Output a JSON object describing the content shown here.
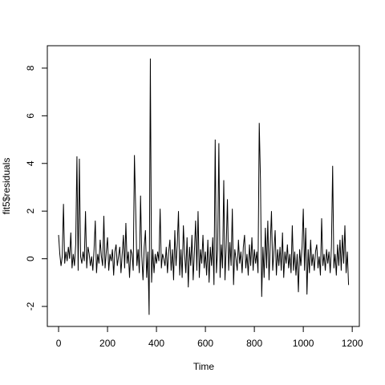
{
  "chart_data": {
    "type": "line",
    "xlabel": "Time",
    "ylabel": "fit5$residuals",
    "color": "#000000",
    "xlim": [
      -46,
      1229
    ],
    "ylim": [
      -2.84,
      8.94
    ],
    "xticks": [
      0,
      200,
      400,
      600,
      800,
      1000,
      1200
    ],
    "yticks": [
      -2,
      0,
      2,
      4,
      6,
      8
    ],
    "x": [
      0,
      5,
      10,
      15,
      20,
      25,
      30,
      35,
      40,
      45,
      50,
      55,
      60,
      65,
      70,
      75,
      80,
      85,
      90,
      95,
      100,
      105,
      110,
      115,
      120,
      125,
      130,
      135,
      140,
      145,
      150,
      155,
      160,
      165,
      170,
      175,
      180,
      185,
      190,
      195,
      200,
      205,
      210,
      215,
      220,
      225,
      230,
      235,
      240,
      245,
      250,
      255,
      260,
      265,
      270,
      275,
      280,
      285,
      290,
      295,
      300,
      305,
      310,
      315,
      320,
      325,
      330,
      335,
      340,
      345,
      350,
      355,
      360,
      365,
      370,
      375,
      380,
      385,
      390,
      395,
      400,
      405,
      410,
      415,
      420,
      425,
      430,
      435,
      440,
      445,
      450,
      455,
      460,
      465,
      470,
      475,
      480,
      485,
      490,
      495,
      500,
      505,
      510,
      515,
      520,
      525,
      530,
      535,
      540,
      545,
      550,
      555,
      560,
      565,
      570,
      575,
      580,
      585,
      590,
      595,
      600,
      605,
      610,
      615,
      620,
      625,
      630,
      635,
      640,
      645,
      650,
      655,
      660,
      665,
      670,
      675,
      680,
      685,
      690,
      695,
      700,
      705,
      710,
      715,
      720,
      725,
      730,
      735,
      740,
      745,
      750,
      755,
      760,
      765,
      770,
      775,
      780,
      785,
      790,
      795,
      800,
      805,
      810,
      815,
      820,
      825,
      830,
      835,
      840,
      845,
      850,
      855,
      860,
      865,
      870,
      875,
      880,
      885,
      890,
      895,
      900,
      905,
      910,
      915,
      920,
      925,
      930,
      935,
      940,
      945,
      950,
      955,
      960,
      965,
      970,
      975,
      980,
      985,
      990,
      995,
      1000,
      1005,
      1010,
      1015,
      1020,
      1025,
      1030,
      1035,
      1040,
      1045,
      1050,
      1055,
      1060,
      1065,
      1070,
      1075,
      1080,
      1085,
      1090,
      1095,
      1100,
      1105,
      1110,
      1115,
      1120,
      1125,
      1130,
      1135,
      1140,
      1145,
      1150,
      1155,
      1160,
      1165,
      1170,
      1175,
      1180,
      1185
    ],
    "values": [
      1.0,
      0.2,
      -0.3,
      0.1,
      2.3,
      -0.2,
      0.3,
      -0.1,
      0.5,
      0.0,
      1.1,
      -0.4,
      0.2,
      -0.3,
      0.6,
      4.3,
      -0.5,
      4.2,
      0.1,
      -0.2,
      0.3,
      -0.1,
      2.0,
      -0.4,
      0.5,
      0.2,
      -0.3,
      0.1,
      -0.5,
      0.4,
      1.6,
      -0.6,
      0.2,
      -0.2,
      0.8,
      0.1,
      -0.3,
      1.8,
      -0.4,
      0.3,
      0.9,
      -0.5,
      0.2,
      -0.1,
      0.4,
      -0.7,
      0.3,
      0.6,
      -0.3,
      0.1,
      0.5,
      -0.6,
      0.2,
      1.0,
      -0.4,
      1.5,
      -0.2,
      0.3,
      -0.8,
      0.4,
      0.2,
      -0.5,
      4.35,
      2.1,
      -0.3,
      0.4,
      -0.6,
      2.65,
      0.1,
      -0.9,
      0.5,
      1.2,
      -0.8,
      0.3,
      -2.35,
      8.4,
      -1.0,
      0.4,
      -0.6,
      0.2,
      -0.2,
      0.3,
      -0.1,
      2.1,
      -0.4,
      0.2,
      0.0,
      -0.3,
      0.5,
      -0.6,
      0.3,
      0.8,
      -0.5,
      0.4,
      -0.9,
      1.2,
      -0.3,
      0.6,
      2.0,
      -0.7,
      0.4,
      -0.8,
      1.4,
      0.2,
      -0.6,
      0.9,
      -1.2,
      0.5,
      -0.3,
      1.0,
      -0.9,
      0.3,
      1.6,
      -0.5,
      2.0,
      -0.8,
      0.4,
      -0.2,
      1.0,
      -0.4,
      0.3,
      -0.7,
      0.8,
      -1.0,
      0.5,
      -0.3,
      0.9,
      -1.1,
      5.0,
      -0.6,
      0.4,
      4.85,
      -0.8,
      0.6,
      -0.4,
      3.3,
      -0.9,
      0.5,
      2.5,
      -0.5,
      0.7,
      -0.3,
      2.1,
      -1.1,
      0.4,
      0.0,
      -0.5,
      0.8,
      -0.2,
      0.3,
      -0.6,
      0.5,
      1.0,
      -0.4,
      0.2,
      -0.7,
      0.6,
      -0.3,
      0.9,
      -0.5,
      0.4,
      -0.2,
      0.3,
      -0.6,
      5.7,
      3.3,
      -1.6,
      0.5,
      -0.8,
      1.3,
      -0.4,
      1.6,
      -0.9,
      0.6,
      2.0,
      -0.5,
      0.3,
      1.2,
      -0.7,
      0.4,
      -0.3,
      0.5,
      -0.5,
      1.1,
      -0.8,
      0.3,
      -0.2,
      0.6,
      -0.4,
      0.2,
      -0.6,
      1.4,
      -0.5,
      0.3,
      -0.7,
      0.2,
      -1.4,
      0.4,
      -0.3,
      0.5,
      2.1,
      -0.5,
      1.3,
      -1.5,
      0.4,
      -0.6,
      0.8,
      -0.3,
      0.2,
      -0.5,
      0.3,
      0.6,
      -0.4,
      0.1,
      -0.7,
      1.7,
      -0.3,
      0.2,
      -0.5,
      0.4,
      -0.2,
      0.3,
      -0.6,
      0.5,
      3.9,
      -0.4,
      0.2,
      -0.7,
      0.6,
      -0.3,
      0.8,
      -0.5,
      1.0,
      -0.2,
      1.4,
      -0.6,
      0.3,
      -1.1
    ]
  }
}
